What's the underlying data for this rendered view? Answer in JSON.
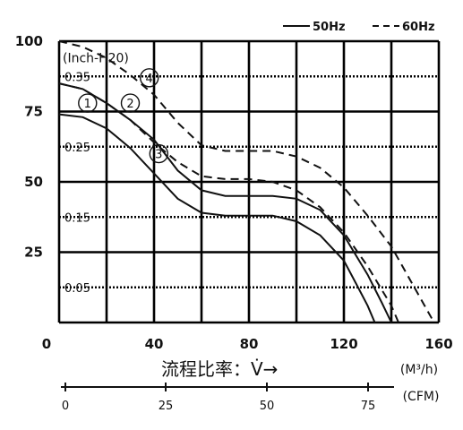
{
  "chart_data": {
    "type": "line",
    "legend": {
      "placement": "top-right",
      "items": [
        {
          "label": "50Hz",
          "style": "solid"
        },
        {
          "label": "60Hz",
          "style": "dashed"
        }
      ]
    },
    "y_axis_left": {
      "ticks": [
        "0",
        "25",
        "50",
        "75",
        "100"
      ],
      "range": [
        0,
        100
      ]
    },
    "y_axis_inner": {
      "unit_label": "(Inch-H20)",
      "ticks": [
        "0.05",
        "0.15",
        "0.25",
        "0.35"
      ]
    },
    "x_axis": {
      "title": "流程比率：V̇→",
      "unit": "(M³/h)",
      "ticks": [
        "40",
        "80",
        "120",
        "160"
      ],
      "range": [
        0,
        160
      ]
    },
    "x_axis_secondary": {
      "unit": "(CFM)",
      "ticks": [
        "0",
        "25",
        "50",
        "75"
      ]
    },
    "grid": true,
    "markers": [
      "1",
      "2",
      "3",
      "4"
    ],
    "series": [
      {
        "name": "1",
        "style": "solid",
        "x": [
          0,
          10,
          20,
          30,
          40,
          50,
          60,
          70,
          80,
          90,
          100,
          110,
          120,
          125,
          130,
          133
        ],
        "y": [
          74,
          73,
          69,
          62,
          53,
          44,
          39,
          38,
          38,
          38,
          36,
          31,
          22,
          14,
          6,
          0
        ]
      },
      {
        "name": "2",
        "style": "solid",
        "x": [
          0,
          10,
          20,
          30,
          40,
          50,
          60,
          70,
          80,
          90,
          100,
          110,
          120,
          130,
          136,
          140
        ],
        "y": [
          85,
          83,
          78,
          72,
          65,
          54,
          47,
          45,
          45,
          45,
          44,
          40,
          31,
          17,
          7,
          0
        ]
      },
      {
        "name": "3",
        "style": "dashed",
        "x": [
          0,
          10,
          20,
          30,
          40,
          50,
          60,
          70,
          80,
          90,
          100,
          110,
          120,
          130,
          140,
          143
        ],
        "y": [
          85,
          83,
          78,
          72,
          64,
          57,
          52,
          51,
          51,
          50,
          47,
          41,
          32,
          20,
          6,
          0
        ]
      },
      {
        "name": "4",
        "style": "dashed",
        "x": [
          0,
          10,
          20,
          30,
          40,
          50,
          60,
          70,
          80,
          90,
          100,
          110,
          120,
          130,
          140,
          150,
          158
        ],
        "y": [
          100,
          98,
          94,
          88,
          81,
          71,
          63,
          61,
          61,
          61,
          59,
          55,
          48,
          38,
          27,
          12,
          0
        ]
      }
    ]
  }
}
